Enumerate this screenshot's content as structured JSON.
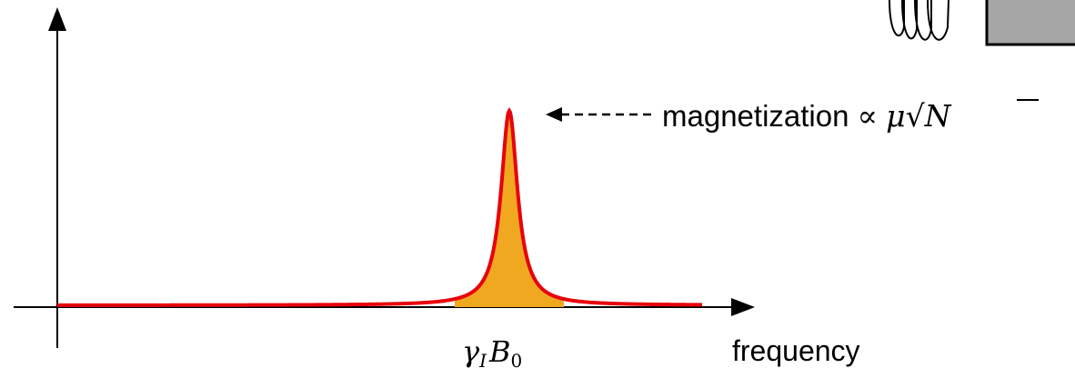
{
  "annotation": {
    "text": "magnetization",
    "relation": "∝",
    "factor": "μ",
    "root": "√",
    "radicand": "N"
  },
  "peak_label": {
    "symbol": "γ",
    "symbol_sub": "I",
    "field": "B",
    "field_sub": "0"
  },
  "x_axis_label": "frequency"
}
